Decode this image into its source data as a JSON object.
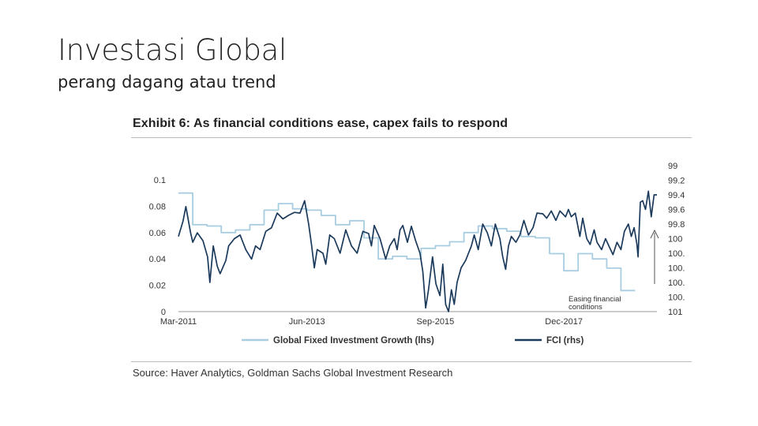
{
  "slide": {
    "title": "Investasi Global",
    "subtitle": "perang dagang atau trend"
  },
  "exhibit": {
    "title": "Exhibit 6: As financial conditions ease, capex fails to respond",
    "source": "Source: Haver Analytics, Goldman Sachs Global Investment Research"
  },
  "colors": {
    "lhs_series": "#a9cde0",
    "rhs_series": "#1b3a5c",
    "text": "#333333"
  },
  "chart_data": {
    "type": "line",
    "title": "Exhibit 6: As financial conditions ease, capex fails to respond",
    "x_range": [
      2011.17,
      2019.55
    ],
    "x_ticks": [
      {
        "label": "Mar-2011",
        "value": 2011.17
      },
      {
        "label": "Jun-2013",
        "value": 2013.42
      },
      {
        "label": "Sep-2015",
        "value": 2015.67
      },
      {
        "label": "Dec-2017",
        "value": 2017.92
      }
    ],
    "y_left": {
      "range": [
        0,
        0.1
      ],
      "ticks": [
        "0.1",
        "0.08",
        "0.06",
        "0.04",
        "0.02",
        "0"
      ],
      "tick_values": [
        0.1,
        0.08,
        0.06,
        0.04,
        0.02,
        0
      ]
    },
    "y_right": {
      "range": [
        99,
        101
      ],
      "inverted": true,
      "ticks": [
        "99",
        "99.2",
        "99.4",
        "99.6",
        "99.8",
        "100",
        "100.",
        "100.",
        "100.",
        "100.",
        "101"
      ],
      "tick_values": [
        99,
        99.2,
        99.4,
        99.6,
        99.8,
        100,
        100.2,
        100.4,
        100.6,
        100.8,
        101
      ]
    },
    "annotation": {
      "lines": [
        "Easing financial",
        "conditions"
      ]
    },
    "series": [
      {
        "name": "Global Fixed Investment Growth (lhs)",
        "axis": "left",
        "step": true,
        "points": [
          [
            2011.17,
            0.09
          ],
          [
            2011.42,
            0.09
          ],
          [
            2011.42,
            0.066
          ],
          [
            2011.67,
            0.066
          ],
          [
            2011.67,
            0.065
          ],
          [
            2011.92,
            0.065
          ],
          [
            2011.92,
            0.06
          ],
          [
            2012.17,
            0.06
          ],
          [
            2012.17,
            0.062
          ],
          [
            2012.42,
            0.062
          ],
          [
            2012.42,
            0.066
          ],
          [
            2012.67,
            0.066
          ],
          [
            2012.67,
            0.077
          ],
          [
            2012.92,
            0.077
          ],
          [
            2012.92,
            0.082
          ],
          [
            2013.17,
            0.082
          ],
          [
            2013.17,
            0.078
          ],
          [
            2013.42,
            0.078
          ],
          [
            2013.42,
            0.077
          ],
          [
            2013.67,
            0.077
          ],
          [
            2013.67,
            0.073
          ],
          [
            2013.92,
            0.073
          ],
          [
            2013.92,
            0.066
          ],
          [
            2014.17,
            0.066
          ],
          [
            2014.17,
            0.069
          ],
          [
            2014.42,
            0.069
          ],
          [
            2014.42,
            0.056
          ],
          [
            2014.67,
            0.056
          ],
          [
            2014.67,
            0.04
          ],
          [
            2014.92,
            0.04
          ],
          [
            2014.92,
            0.042
          ],
          [
            2015.17,
            0.042
          ],
          [
            2015.17,
            0.04
          ],
          [
            2015.42,
            0.04
          ],
          [
            2015.42,
            0.048
          ],
          [
            2015.67,
            0.048
          ],
          [
            2015.67,
            0.05
          ],
          [
            2015.92,
            0.05
          ],
          [
            2015.92,
            0.053
          ],
          [
            2016.17,
            0.053
          ],
          [
            2016.17,
            0.06
          ],
          [
            2016.42,
            0.06
          ],
          [
            2016.42,
            0.065
          ],
          [
            2016.67,
            0.065
          ],
          [
            2016.67,
            0.063
          ],
          [
            2016.92,
            0.063
          ],
          [
            2016.92,
            0.061
          ],
          [
            2017.17,
            0.061
          ],
          [
            2017.17,
            0.057
          ],
          [
            2017.42,
            0.057
          ],
          [
            2017.42,
            0.056
          ],
          [
            2017.67,
            0.056
          ],
          [
            2017.67,
            0.044
          ],
          [
            2017.92,
            0.044
          ],
          [
            2017.92,
            0.031
          ],
          [
            2018.17,
            0.031
          ],
          [
            2018.17,
            0.044
          ],
          [
            2018.42,
            0.044
          ],
          [
            2018.42,
            0.04
          ],
          [
            2018.67,
            0.04
          ],
          [
            2018.67,
            0.033
          ],
          [
            2018.92,
            0.033
          ],
          [
            2018.92,
            0.016
          ],
          [
            2019.17,
            0.016
          ]
        ]
      },
      {
        "name": "FCI (rhs)",
        "axis": "right",
        "step": false,
        "points": [
          [
            2011.17,
            99.97
          ],
          [
            2011.25,
            99.76
          ],
          [
            2011.3,
            99.56
          ],
          [
            2011.38,
            99.91
          ],
          [
            2011.42,
            100.05
          ],
          [
            2011.5,
            99.92
          ],
          [
            2011.6,
            100.03
          ],
          [
            2011.68,
            100.25
          ],
          [
            2011.72,
            100.6
          ],
          [
            2011.78,
            100.1
          ],
          [
            2011.85,
            100.38
          ],
          [
            2011.9,
            100.48
          ],
          [
            2012.0,
            100.3
          ],
          [
            2012.05,
            100.1
          ],
          [
            2012.15,
            100.0
          ],
          [
            2012.25,
            99.95
          ],
          [
            2012.35,
            100.15
          ],
          [
            2012.45,
            100.28
          ],
          [
            2012.52,
            100.1
          ],
          [
            2012.6,
            100.15
          ],
          [
            2012.7,
            99.9
          ],
          [
            2012.8,
            99.85
          ],
          [
            2012.9,
            99.65
          ],
          [
            2013.0,
            99.73
          ],
          [
            2013.1,
            99.68
          ],
          [
            2013.2,
            99.64
          ],
          [
            2013.3,
            99.65
          ],
          [
            2013.38,
            99.48
          ],
          [
            2013.45,
            99.8
          ],
          [
            2013.5,
            100.08
          ],
          [
            2013.55,
            100.4
          ],
          [
            2013.6,
            100.15
          ],
          [
            2013.7,
            100.2
          ],
          [
            2013.75,
            100.35
          ],
          [
            2013.82,
            99.95
          ],
          [
            2013.9,
            100.0
          ],
          [
            2014.0,
            100.2
          ],
          [
            2014.1,
            99.88
          ],
          [
            2014.2,
            100.1
          ],
          [
            2014.3,
            100.2
          ],
          [
            2014.4,
            99.9
          ],
          [
            2014.5,
            99.93
          ],
          [
            2014.55,
            100.1
          ],
          [
            2014.6,
            99.82
          ],
          [
            2014.7,
            100.0
          ],
          [
            2014.8,
            100.28
          ],
          [
            2014.87,
            100.1
          ],
          [
            2014.95,
            100.0
          ],
          [
            2015.0,
            100.15
          ],
          [
            2015.05,
            99.88
          ],
          [
            2015.1,
            99.82
          ],
          [
            2015.18,
            100.05
          ],
          [
            2015.25,
            99.83
          ],
          [
            2015.32,
            100.02
          ],
          [
            2015.4,
            100.2
          ],
          [
            2015.45,
            100.45
          ],
          [
            2015.5,
            100.95
          ],
          [
            2015.55,
            100.7
          ],
          [
            2015.62,
            100.25
          ],
          [
            2015.68,
            100.62
          ],
          [
            2015.75,
            100.78
          ],
          [
            2015.8,
            100.35
          ],
          [
            2015.85,
            100.9
          ],
          [
            2015.9,
            101.0
          ],
          [
            2015.95,
            100.7
          ],
          [
            2016.0,
            100.9
          ],
          [
            2016.05,
            100.6
          ],
          [
            2016.12,
            100.4
          ],
          [
            2016.2,
            100.3
          ],
          [
            2016.3,
            100.1
          ],
          [
            2016.35,
            99.95
          ],
          [
            2016.42,
            100.15
          ],
          [
            2016.5,
            99.8
          ],
          [
            2016.58,
            99.92
          ],
          [
            2016.65,
            100.1
          ],
          [
            2016.72,
            99.8
          ],
          [
            2016.8,
            100.0
          ],
          [
            2016.85,
            100.25
          ],
          [
            2016.9,
            100.42
          ],
          [
            2016.95,
            100.1
          ],
          [
            2017.0,
            99.97
          ],
          [
            2017.08,
            100.05
          ],
          [
            2017.15,
            99.95
          ],
          [
            2017.22,
            99.75
          ],
          [
            2017.3,
            99.95
          ],
          [
            2017.38,
            99.85
          ],
          [
            2017.45,
            99.65
          ],
          [
            2017.55,
            99.66
          ],
          [
            2017.62,
            99.72
          ],
          [
            2017.7,
            99.62
          ],
          [
            2017.78,
            99.75
          ],
          [
            2017.85,
            99.62
          ],
          [
            2017.95,
            99.7
          ],
          [
            2018.0,
            99.6
          ],
          [
            2018.05,
            99.7
          ],
          [
            2018.12,
            99.65
          ],
          [
            2018.2,
            99.97
          ],
          [
            2018.25,
            99.72
          ],
          [
            2018.32,
            100.0
          ],
          [
            2018.38,
            100.08
          ],
          [
            2018.45,
            99.88
          ],
          [
            2018.5,
            100.05
          ],
          [
            2018.58,
            100.15
          ],
          [
            2018.65,
            100.0
          ],
          [
            2018.72,
            100.12
          ],
          [
            2018.78,
            100.22
          ],
          [
            2018.85,
            100.05
          ],
          [
            2018.92,
            100.15
          ],
          [
            2018.98,
            99.9
          ],
          [
            2019.05,
            99.8
          ],
          [
            2019.1,
            99.97
          ],
          [
            2019.15,
            99.85
          ],
          [
            2019.2,
            100.08
          ],
          [
            2019.22,
            100.25
          ],
          [
            2019.26,
            99.5
          ],
          [
            2019.3,
            99.48
          ],
          [
            2019.35,
            99.6
          ],
          [
            2019.4,
            99.35
          ],
          [
            2019.45,
            99.7
          ],
          [
            2019.5,
            99.4
          ],
          [
            2019.55,
            99.4
          ]
        ]
      }
    ]
  }
}
